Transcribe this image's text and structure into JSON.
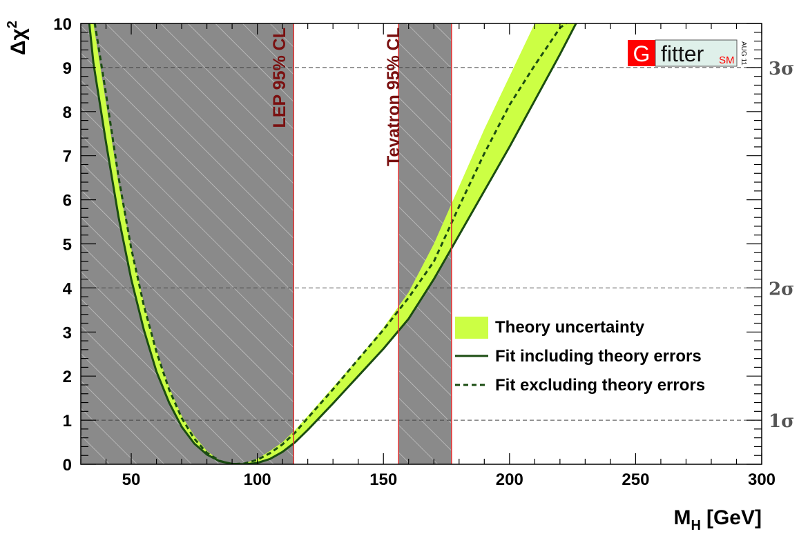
{
  "chart_data": {
    "type": "line",
    "xlabel": "M",
    "xlabel_sub": "H",
    "xlabel_unit": "[GeV]",
    "ylabel_symbol": "Δχ",
    "ylabel_sup": "2",
    "xlim": [
      30,
      300
    ],
    "ylim": [
      0,
      10
    ],
    "x_ticks": [
      "50",
      "100",
      "150",
      "200",
      "250",
      "300"
    ],
    "y_ticks": [
      "0",
      "1",
      "2",
      "3",
      "4",
      "5",
      "6",
      "7",
      "8",
      "9",
      "10"
    ],
    "grid_lines_y": [
      1,
      4,
      9
    ],
    "sigma_labels": [
      {
        "value": 1,
        "label": "1σ"
      },
      {
        "value": 4,
        "label": "2σ"
      },
      {
        "value": 9,
        "label": "3σ"
      }
    ],
    "excluded_regions": [
      {
        "name": "LEP 95% CL",
        "range": [
          30,
          114.4
        ]
      },
      {
        "name": "Tevatron 95% CL",
        "range": [
          156,
          177
        ]
      }
    ],
    "series": [
      {
        "name": "Fit including theory errors",
        "style": "solid",
        "color": "#1b4d12",
        "x": [
          33,
          35,
          40,
          45,
          50,
          55,
          60,
          65,
          70,
          75,
          80,
          85,
          90,
          95,
          100,
          105,
          110,
          115,
          120,
          130,
          140,
          150,
          160,
          170,
          180,
          190,
          200,
          210,
          220,
          230
        ],
        "y": [
          10.2,
          9.1,
          7.3,
          5.6,
          4.2,
          3.05,
          2.1,
          1.4,
          0.85,
          0.47,
          0.22,
          0.07,
          0.01,
          0,
          0.03,
          0.12,
          0.28,
          0.5,
          0.78,
          1.38,
          2.0,
          2.62,
          3.3,
          4.2,
          5.2,
          6.2,
          7.2,
          8.25,
          9.3,
          10.4
        ]
      },
      {
        "name": "Fit excluding theory errors",
        "style": "dashed",
        "color": "#1b4d12",
        "x": [
          35,
          40,
          45,
          50,
          55,
          60,
          65,
          70,
          75,
          80,
          85,
          90,
          95,
          100,
          105,
          110,
          115,
          120,
          130,
          140,
          150,
          160,
          170,
          180,
          190,
          200,
          210,
          220,
          227
        ],
        "y": [
          10.2,
          8.4,
          6.5,
          4.9,
          3.6,
          2.55,
          1.7,
          1.05,
          0.58,
          0.26,
          0.08,
          0.0,
          0.02,
          0.1,
          0.25,
          0.45,
          0.72,
          1.05,
          1.7,
          2.38,
          3.05,
          3.78,
          4.6,
          5.85,
          7.05,
          8.15,
          9.05,
          9.9,
          10.2
        ]
      }
    ],
    "band": {
      "name": "Theory uncertainty",
      "color": "#ccff44",
      "x": [
        33,
        35,
        40,
        45,
        50,
        55,
        60,
        65,
        70,
        75,
        80,
        85,
        90,
        95,
        100,
        105,
        110,
        115,
        120,
        130,
        140,
        150,
        160,
        170,
        180,
        190,
        200,
        210,
        220,
        230
      ],
      "low": [
        10.2,
        9.1,
        7.3,
        5.6,
        4.2,
        3.05,
        2.1,
        1.4,
        0.85,
        0.47,
        0.22,
        0.07,
        0.01,
        0,
        0.03,
        0.12,
        0.28,
        0.5,
        0.78,
        1.38,
        2.0,
        2.62,
        3.3,
        4.2,
        5.2,
        6.2,
        7.2,
        8.25,
        9.3,
        10.4
      ],
      "high": [
        10.6,
        10.0,
        8.2,
        6.35,
        4.9,
        3.65,
        2.6,
        1.75,
        1.1,
        0.65,
        0.3,
        0.09,
        0.01,
        0.02,
        0.12,
        0.3,
        0.5,
        0.78,
        1.1,
        1.75,
        2.4,
        3.1,
        3.9,
        5.0,
        6.3,
        7.6,
        8.8,
        10.0,
        11.0,
        12.0
      ]
    },
    "legend": {
      "placement": "lower-right",
      "entries": [
        {
          "label": "Theory uncertainty",
          "kind": "band"
        },
        {
          "label": "Fit including theory errors",
          "kind": "solid"
        },
        {
          "label": "Fit excluding theory errors",
          "kind": "dashed"
        }
      ]
    }
  },
  "logo": {
    "letter": "G",
    "word": "fitter",
    "badge": "SM",
    "stamp": "AUG 11",
    "letter_bg": "#ff0000",
    "word_bg": "#dff0ea"
  },
  "colors": {
    "excluded_fill": "#8a8a8a",
    "exclusion_line": "#e03030",
    "grid": "#444444"
  }
}
